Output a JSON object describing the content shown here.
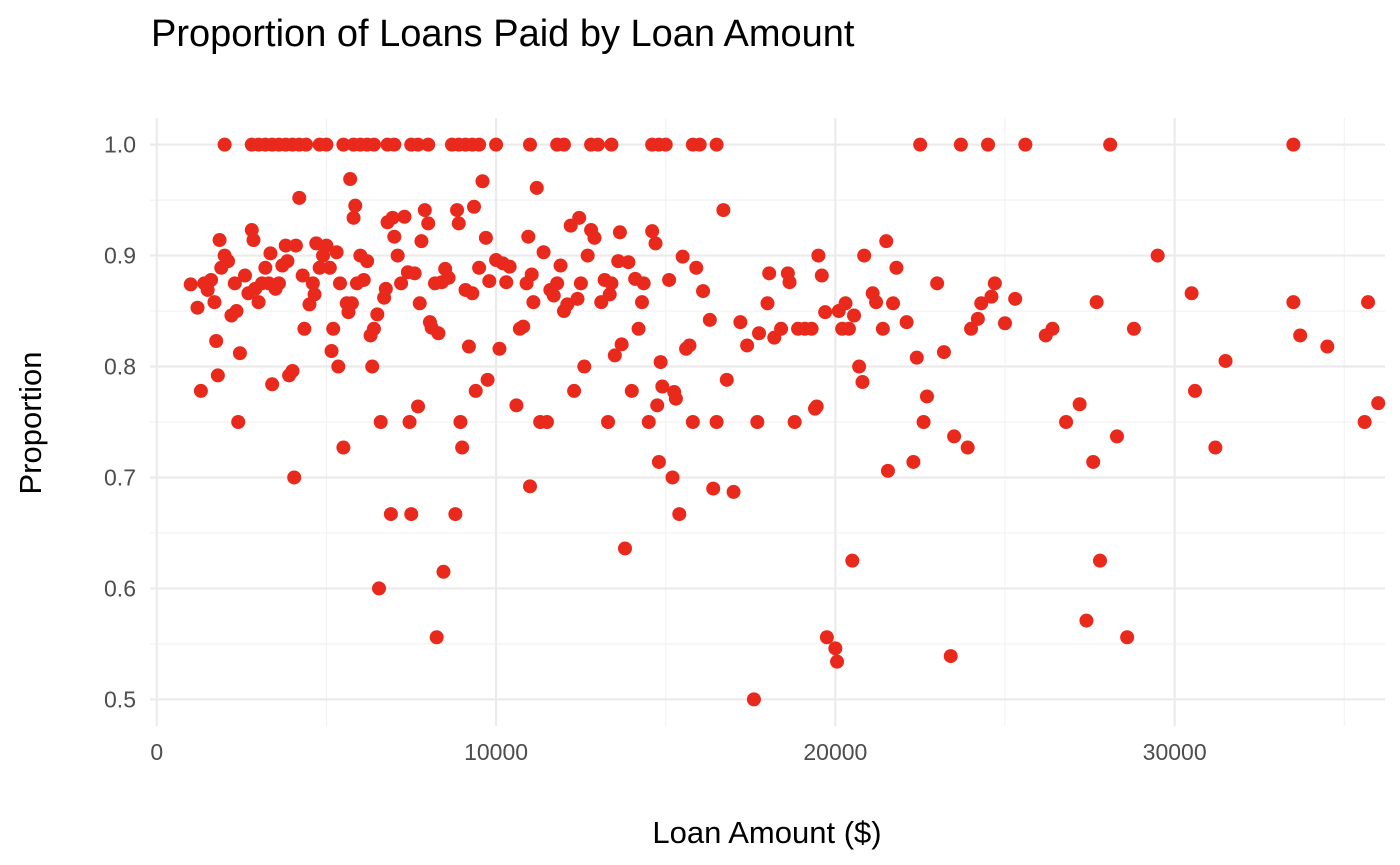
{
  "chart_data": {
    "type": "scatter",
    "title": "Proportion of Loans Paid by Loan Amount",
    "xlabel": "Loan Amount ($)",
    "ylabel": "Proportion",
    "xlim": [
      -200,
      36200
    ],
    "ylim": [
      0.476,
      1.024
    ],
    "x_ticks": [
      0,
      10000,
      20000,
      30000
    ],
    "x_tick_labels": [
      "0",
      "10000",
      "20000",
      "30000"
    ],
    "y_ticks": [
      0.5,
      0.6,
      0.7,
      0.8,
      0.9,
      1.0
    ],
    "y_tick_labels": [
      "0.5",
      "0.6",
      "0.7",
      "0.8",
      "0.9",
      "1.0"
    ],
    "grid": true,
    "point_color": "#e8291c",
    "points": [
      [
        2000,
        1.0
      ],
      [
        2800,
        1.0
      ],
      [
        3000,
        1.0
      ],
      [
        3200,
        1.0
      ],
      [
        3400,
        1.0
      ],
      [
        3600,
        1.0
      ],
      [
        3800,
        1.0
      ],
      [
        4000,
        1.0
      ],
      [
        4200,
        1.0
      ],
      [
        4400,
        1.0
      ],
      [
        4800,
        1.0
      ],
      [
        5000,
        1.0
      ],
      [
        5500,
        1.0
      ],
      [
        5800,
        1.0
      ],
      [
        6000,
        1.0
      ],
      [
        6200,
        1.0
      ],
      [
        6400,
        1.0
      ],
      [
        6800,
        1.0
      ],
      [
        7000,
        1.0
      ],
      [
        7500,
        1.0
      ],
      [
        7700,
        1.0
      ],
      [
        8000,
        1.0
      ],
      [
        8700,
        1.0
      ],
      [
        8900,
        1.0
      ],
      [
        9100,
        1.0
      ],
      [
        9300,
        1.0
      ],
      [
        9500,
        1.0
      ],
      [
        10000,
        1.0
      ],
      [
        11000,
        1.0
      ],
      [
        11800,
        1.0
      ],
      [
        12000,
        1.0
      ],
      [
        12800,
        1.0
      ],
      [
        13000,
        1.0
      ],
      [
        13400,
        1.0
      ],
      [
        14600,
        1.0
      ],
      [
        14800,
        1.0
      ],
      [
        15000,
        1.0
      ],
      [
        15800,
        1.0
      ],
      [
        16000,
        1.0
      ],
      [
        16500,
        1.0
      ],
      [
        22500,
        1.0
      ],
      [
        23700,
        1.0
      ],
      [
        24500,
        1.0
      ],
      [
        25600,
        1.0
      ],
      [
        28100,
        1.0
      ],
      [
        33500,
        1.0
      ],
      [
        1000,
        0.874
      ],
      [
        1200,
        0.853
      ],
      [
        1300,
        0.778
      ],
      [
        1400,
        0.875
      ],
      [
        1500,
        0.869
      ],
      [
        1600,
        0.878
      ],
      [
        1700,
        0.858
      ],
      [
        1750,
        0.823
      ],
      [
        1800,
        0.792
      ],
      [
        1850,
        0.914
      ],
      [
        1900,
        0.889
      ],
      [
        2000,
        0.9
      ],
      [
        2100,
        0.895
      ],
      [
        2200,
        0.846
      ],
      [
        2300,
        0.875
      ],
      [
        2350,
        0.85
      ],
      [
        2400,
        0.75
      ],
      [
        2450,
        0.812
      ],
      [
        2600,
        0.882
      ],
      [
        2700,
        0.866
      ],
      [
        2800,
        0.923
      ],
      [
        2850,
        0.914
      ],
      [
        2900,
        0.87
      ],
      [
        3000,
        0.858
      ],
      [
        3100,
        0.875
      ],
      [
        3200,
        0.889
      ],
      [
        3300,
        0.875
      ],
      [
        3350,
        0.902
      ],
      [
        3400,
        0.784
      ],
      [
        3500,
        0.87
      ],
      [
        3600,
        0.875
      ],
      [
        3700,
        0.891
      ],
      [
        3800,
        0.909
      ],
      [
        3850,
        0.895
      ],
      [
        3900,
        0.792
      ],
      [
        4000,
        0.796
      ],
      [
        4050,
        0.7
      ],
      [
        4100,
        0.909
      ],
      [
        4200,
        0.952
      ],
      [
        4300,
        0.882
      ],
      [
        4350,
        0.834
      ],
      [
        4500,
        0.856
      ],
      [
        4600,
        0.875
      ],
      [
        4650,
        0.865
      ],
      [
        4700,
        0.911
      ],
      [
        4800,
        0.889
      ],
      [
        4900,
        0.9
      ],
      [
        5000,
        0.909
      ],
      [
        5100,
        0.889
      ],
      [
        5150,
        0.814
      ],
      [
        5200,
        0.834
      ],
      [
        5300,
        0.903
      ],
      [
        5350,
        0.8
      ],
      [
        5400,
        0.875
      ],
      [
        5500,
        0.727
      ],
      [
        5600,
        0.857
      ],
      [
        5650,
        0.849
      ],
      [
        5700,
        0.969
      ],
      [
        5750,
        0.857
      ],
      [
        5800,
        0.934
      ],
      [
        5850,
        0.945
      ],
      [
        5900,
        0.875
      ],
      [
        6000,
        0.9
      ],
      [
        6100,
        0.878
      ],
      [
        6200,
        0.895
      ],
      [
        6300,
        0.828
      ],
      [
        6350,
        0.8
      ],
      [
        6400,
        0.834
      ],
      [
        6500,
        0.847
      ],
      [
        6550,
        0.6
      ],
      [
        6600,
        0.75
      ],
      [
        6700,
        0.862
      ],
      [
        6750,
        0.87
      ],
      [
        6800,
        0.93
      ],
      [
        6900,
        0.667
      ],
      [
        6950,
        0.934
      ],
      [
        7000,
        0.917
      ],
      [
        7100,
        0.9
      ],
      [
        7200,
        0.875
      ],
      [
        7300,
        0.935
      ],
      [
        7400,
        0.885
      ],
      [
        7450,
        0.75
      ],
      [
        7500,
        0.667
      ],
      [
        7600,
        0.884
      ],
      [
        7700,
        0.764
      ],
      [
        7750,
        0.857
      ],
      [
        7800,
        0.913
      ],
      [
        7900,
        0.941
      ],
      [
        8000,
        0.929
      ],
      [
        8050,
        0.84
      ],
      [
        8100,
        0.835
      ],
      [
        8200,
        0.875
      ],
      [
        8250,
        0.556
      ],
      [
        8300,
        0.83
      ],
      [
        8400,
        0.876
      ],
      [
        8450,
        0.615
      ],
      [
        8500,
        0.888
      ],
      [
        8600,
        0.88
      ],
      [
        8800,
        0.667
      ],
      [
        8850,
        0.941
      ],
      [
        8900,
        0.929
      ],
      [
        8950,
        0.75
      ],
      [
        9000,
        0.727
      ],
      [
        9100,
        0.869
      ],
      [
        9200,
        0.818
      ],
      [
        9300,
        0.866
      ],
      [
        9350,
        0.944
      ],
      [
        9400,
        0.778
      ],
      [
        9500,
        0.889
      ],
      [
        9600,
        0.967
      ],
      [
        9700,
        0.916
      ],
      [
        9750,
        0.788
      ],
      [
        9800,
        0.877
      ],
      [
        10000,
        0.896
      ],
      [
        10100,
        0.816
      ],
      [
        10200,
        0.893
      ],
      [
        10300,
        0.876
      ],
      [
        10400,
        0.89
      ],
      [
        10600,
        0.765
      ],
      [
        10700,
        0.834
      ],
      [
        10800,
        0.836
      ],
      [
        10900,
        0.875
      ],
      [
        10950,
        0.917
      ],
      [
        11000,
        0.692
      ],
      [
        11050,
        0.883
      ],
      [
        11100,
        0.858
      ],
      [
        11200,
        0.961
      ],
      [
        11300,
        0.75
      ],
      [
        11400,
        0.903
      ],
      [
        11500,
        0.75
      ],
      [
        11600,
        0.869
      ],
      [
        11700,
        0.864
      ],
      [
        11800,
        0.875
      ],
      [
        11900,
        0.891
      ],
      [
        12000,
        0.85
      ],
      [
        12100,
        0.856
      ],
      [
        12200,
        0.927
      ],
      [
        12300,
        0.778
      ],
      [
        12400,
        0.861
      ],
      [
        12450,
        0.934
      ],
      [
        12500,
        0.875
      ],
      [
        12600,
        0.8
      ],
      [
        12700,
        0.9
      ],
      [
        12800,
        0.923
      ],
      [
        12900,
        0.916
      ],
      [
        13100,
        0.858
      ],
      [
        13200,
        0.878
      ],
      [
        13300,
        0.75
      ],
      [
        13350,
        0.865
      ],
      [
        13400,
        0.875
      ],
      [
        13500,
        0.81
      ],
      [
        13600,
        0.895
      ],
      [
        13650,
        0.921
      ],
      [
        13700,
        0.82
      ],
      [
        13800,
        0.636
      ],
      [
        13900,
        0.894
      ],
      [
        14000,
        0.778
      ],
      [
        14100,
        0.879
      ],
      [
        14200,
        0.834
      ],
      [
        14300,
        0.858
      ],
      [
        14350,
        0.875
      ],
      [
        14500,
        0.75
      ],
      [
        14600,
        0.922
      ],
      [
        14700,
        0.911
      ],
      [
        14750,
        0.765
      ],
      [
        14800,
        0.714
      ],
      [
        14850,
        0.804
      ],
      [
        14900,
        0.782
      ],
      [
        15100,
        0.878
      ],
      [
        15200,
        0.7
      ],
      [
        15250,
        0.777
      ],
      [
        15300,
        0.771
      ],
      [
        15400,
        0.667
      ],
      [
        15500,
        0.899
      ],
      [
        15600,
        0.816
      ],
      [
        15700,
        0.819
      ],
      [
        15800,
        0.75
      ],
      [
        15900,
        0.889
      ],
      [
        16100,
        0.868
      ],
      [
        16300,
        0.842
      ],
      [
        16400,
        0.69
      ],
      [
        16500,
        0.75
      ],
      [
        16700,
        0.941
      ],
      [
        16800,
        0.788
      ],
      [
        17000,
        0.687
      ],
      [
        17200,
        0.84
      ],
      [
        17400,
        0.819
      ],
      [
        17600,
        0.5
      ],
      [
        17700,
        0.75
      ],
      [
        17750,
        0.83
      ],
      [
        18000,
        0.857
      ],
      [
        18050,
        0.884
      ],
      [
        18200,
        0.826
      ],
      [
        18400,
        0.834
      ],
      [
        18600,
        0.884
      ],
      [
        18650,
        0.876
      ],
      [
        18800,
        0.75
      ],
      [
        18900,
        0.834
      ],
      [
        19100,
        0.834
      ],
      [
        19300,
        0.834
      ],
      [
        19400,
        0.762
      ],
      [
        19450,
        0.764
      ],
      [
        19500,
        0.9
      ],
      [
        19600,
        0.882
      ],
      [
        19700,
        0.849
      ],
      [
        19750,
        0.556
      ],
      [
        20000,
        0.546
      ],
      [
        20050,
        0.534
      ],
      [
        20100,
        0.85
      ],
      [
        20200,
        0.834
      ],
      [
        20300,
        0.857
      ],
      [
        20400,
        0.834
      ],
      [
        20500,
        0.625
      ],
      [
        20550,
        0.846
      ],
      [
        20700,
        0.8
      ],
      [
        20800,
        0.786
      ],
      [
        20850,
        0.9
      ],
      [
        21100,
        0.866
      ],
      [
        21200,
        0.858
      ],
      [
        21400,
        0.834
      ],
      [
        21500,
        0.913
      ],
      [
        21550,
        0.706
      ],
      [
        21700,
        0.857
      ],
      [
        21800,
        0.889
      ],
      [
        22100,
        0.84
      ],
      [
        22300,
        0.714
      ],
      [
        22400,
        0.808
      ],
      [
        22600,
        0.75
      ],
      [
        22700,
        0.773
      ],
      [
        23000,
        0.875
      ],
      [
        23200,
        0.813
      ],
      [
        23400,
        0.539
      ],
      [
        23500,
        0.737
      ],
      [
        23900,
        0.727
      ],
      [
        24000,
        0.834
      ],
      [
        24200,
        0.843
      ],
      [
        24300,
        0.857
      ],
      [
        24600,
        0.863
      ],
      [
        24700,
        0.875
      ],
      [
        25000,
        0.839
      ],
      [
        25300,
        0.861
      ],
      [
        26200,
        0.828
      ],
      [
        26400,
        0.834
      ],
      [
        26800,
        0.75
      ],
      [
        27200,
        0.766
      ],
      [
        27400,
        0.571
      ],
      [
        27600,
        0.714
      ],
      [
        27700,
        0.858
      ],
      [
        27800,
        0.625
      ],
      [
        28300,
        0.737
      ],
      [
        28600,
        0.556
      ],
      [
        28800,
        0.834
      ],
      [
        29500,
        0.9
      ],
      [
        30500,
        0.866
      ],
      [
        30600,
        0.778
      ],
      [
        31200,
        0.727
      ],
      [
        31500,
        0.805
      ],
      [
        33500,
        0.858
      ],
      [
        33700,
        0.828
      ],
      [
        34500,
        0.818
      ],
      [
        35600,
        0.75
      ],
      [
        35700,
        0.858
      ],
      [
        36000,
        0.767
      ]
    ]
  }
}
